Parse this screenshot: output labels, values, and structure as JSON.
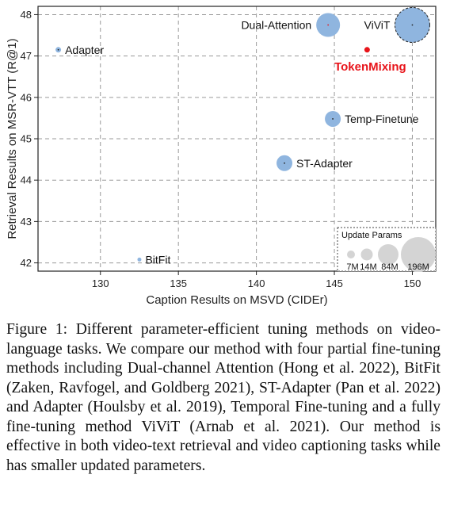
{
  "chart_data": {
    "type": "scatter",
    "xlabel": "Caption Results on MSVD (CIDEr)",
    "ylabel": "Retrieval Results on MSR-VTT (R@1)",
    "xlim": [
      126,
      151.5
    ],
    "ylim": [
      41.8,
      48.2
    ],
    "xticks": [
      130,
      135,
      140,
      145,
      150
    ],
    "yticks": [
      42,
      43,
      44,
      45,
      46,
      47,
      48
    ],
    "grid": true,
    "points": [
      {
        "label": "Adapter",
        "x": 127.3,
        "y": 47.15,
        "size": "small",
        "color": "#8fb5df",
        "label_side": "right"
      },
      {
        "label": "BitFit",
        "x": 132.5,
        "y": 42.08,
        "size": "tiny",
        "color": "#8fb5df",
        "label_side": "right"
      },
      {
        "label": "Dual-Attention",
        "x": 144.6,
        "y": 47.75,
        "size": "large",
        "color": "#8fb5df",
        "label_side": "left"
      },
      {
        "label": "ViViT",
        "x": 150.0,
        "y": 47.75,
        "size": "xlarge",
        "color": "#8fb5df",
        "label_side": "left",
        "dashed": true
      },
      {
        "label": "TokenMixing",
        "x": 147.1,
        "y": 47.15,
        "size": "small",
        "color": "#e8141a",
        "label_side": "below",
        "highlight": true
      },
      {
        "label": "Temp-Finetune",
        "x": 144.9,
        "y": 45.48,
        "size": "medium",
        "color": "#8fb5df",
        "label_side": "right"
      },
      {
        "label": "ST-Adapter",
        "x": 141.8,
        "y": 44.41,
        "size": "medium",
        "color": "#8fb5df",
        "label_side": "right"
      }
    ],
    "legend": {
      "title": "Update Params",
      "position": "bottom-right",
      "entries": [
        {
          "label": "7M",
          "size": "tiny"
        },
        {
          "label": "14M",
          "size": "small"
        },
        {
          "label": "84M",
          "size": "medium"
        },
        {
          "label": "196M",
          "size": "xlarge"
        }
      ]
    }
  },
  "caption": "Figure 1: Different parameter-efficient tuning methods on video-language tasks. We compare our method with four partial fine-tuning methods including Dual-channel Attention (Hong et al. 2022), BitFit (Zaken, Ravfogel, and Goldberg 2021), ST-Adapter (Pan et al. 2022) and Adapter (Houlsby et al. 2019), Temporal Fine-tuning and a fully fine-tuning method ViViT (Arnab et al. 2021). Our method is effective in both video-text retrieval and video captioning tasks while has smaller updated parameters."
}
